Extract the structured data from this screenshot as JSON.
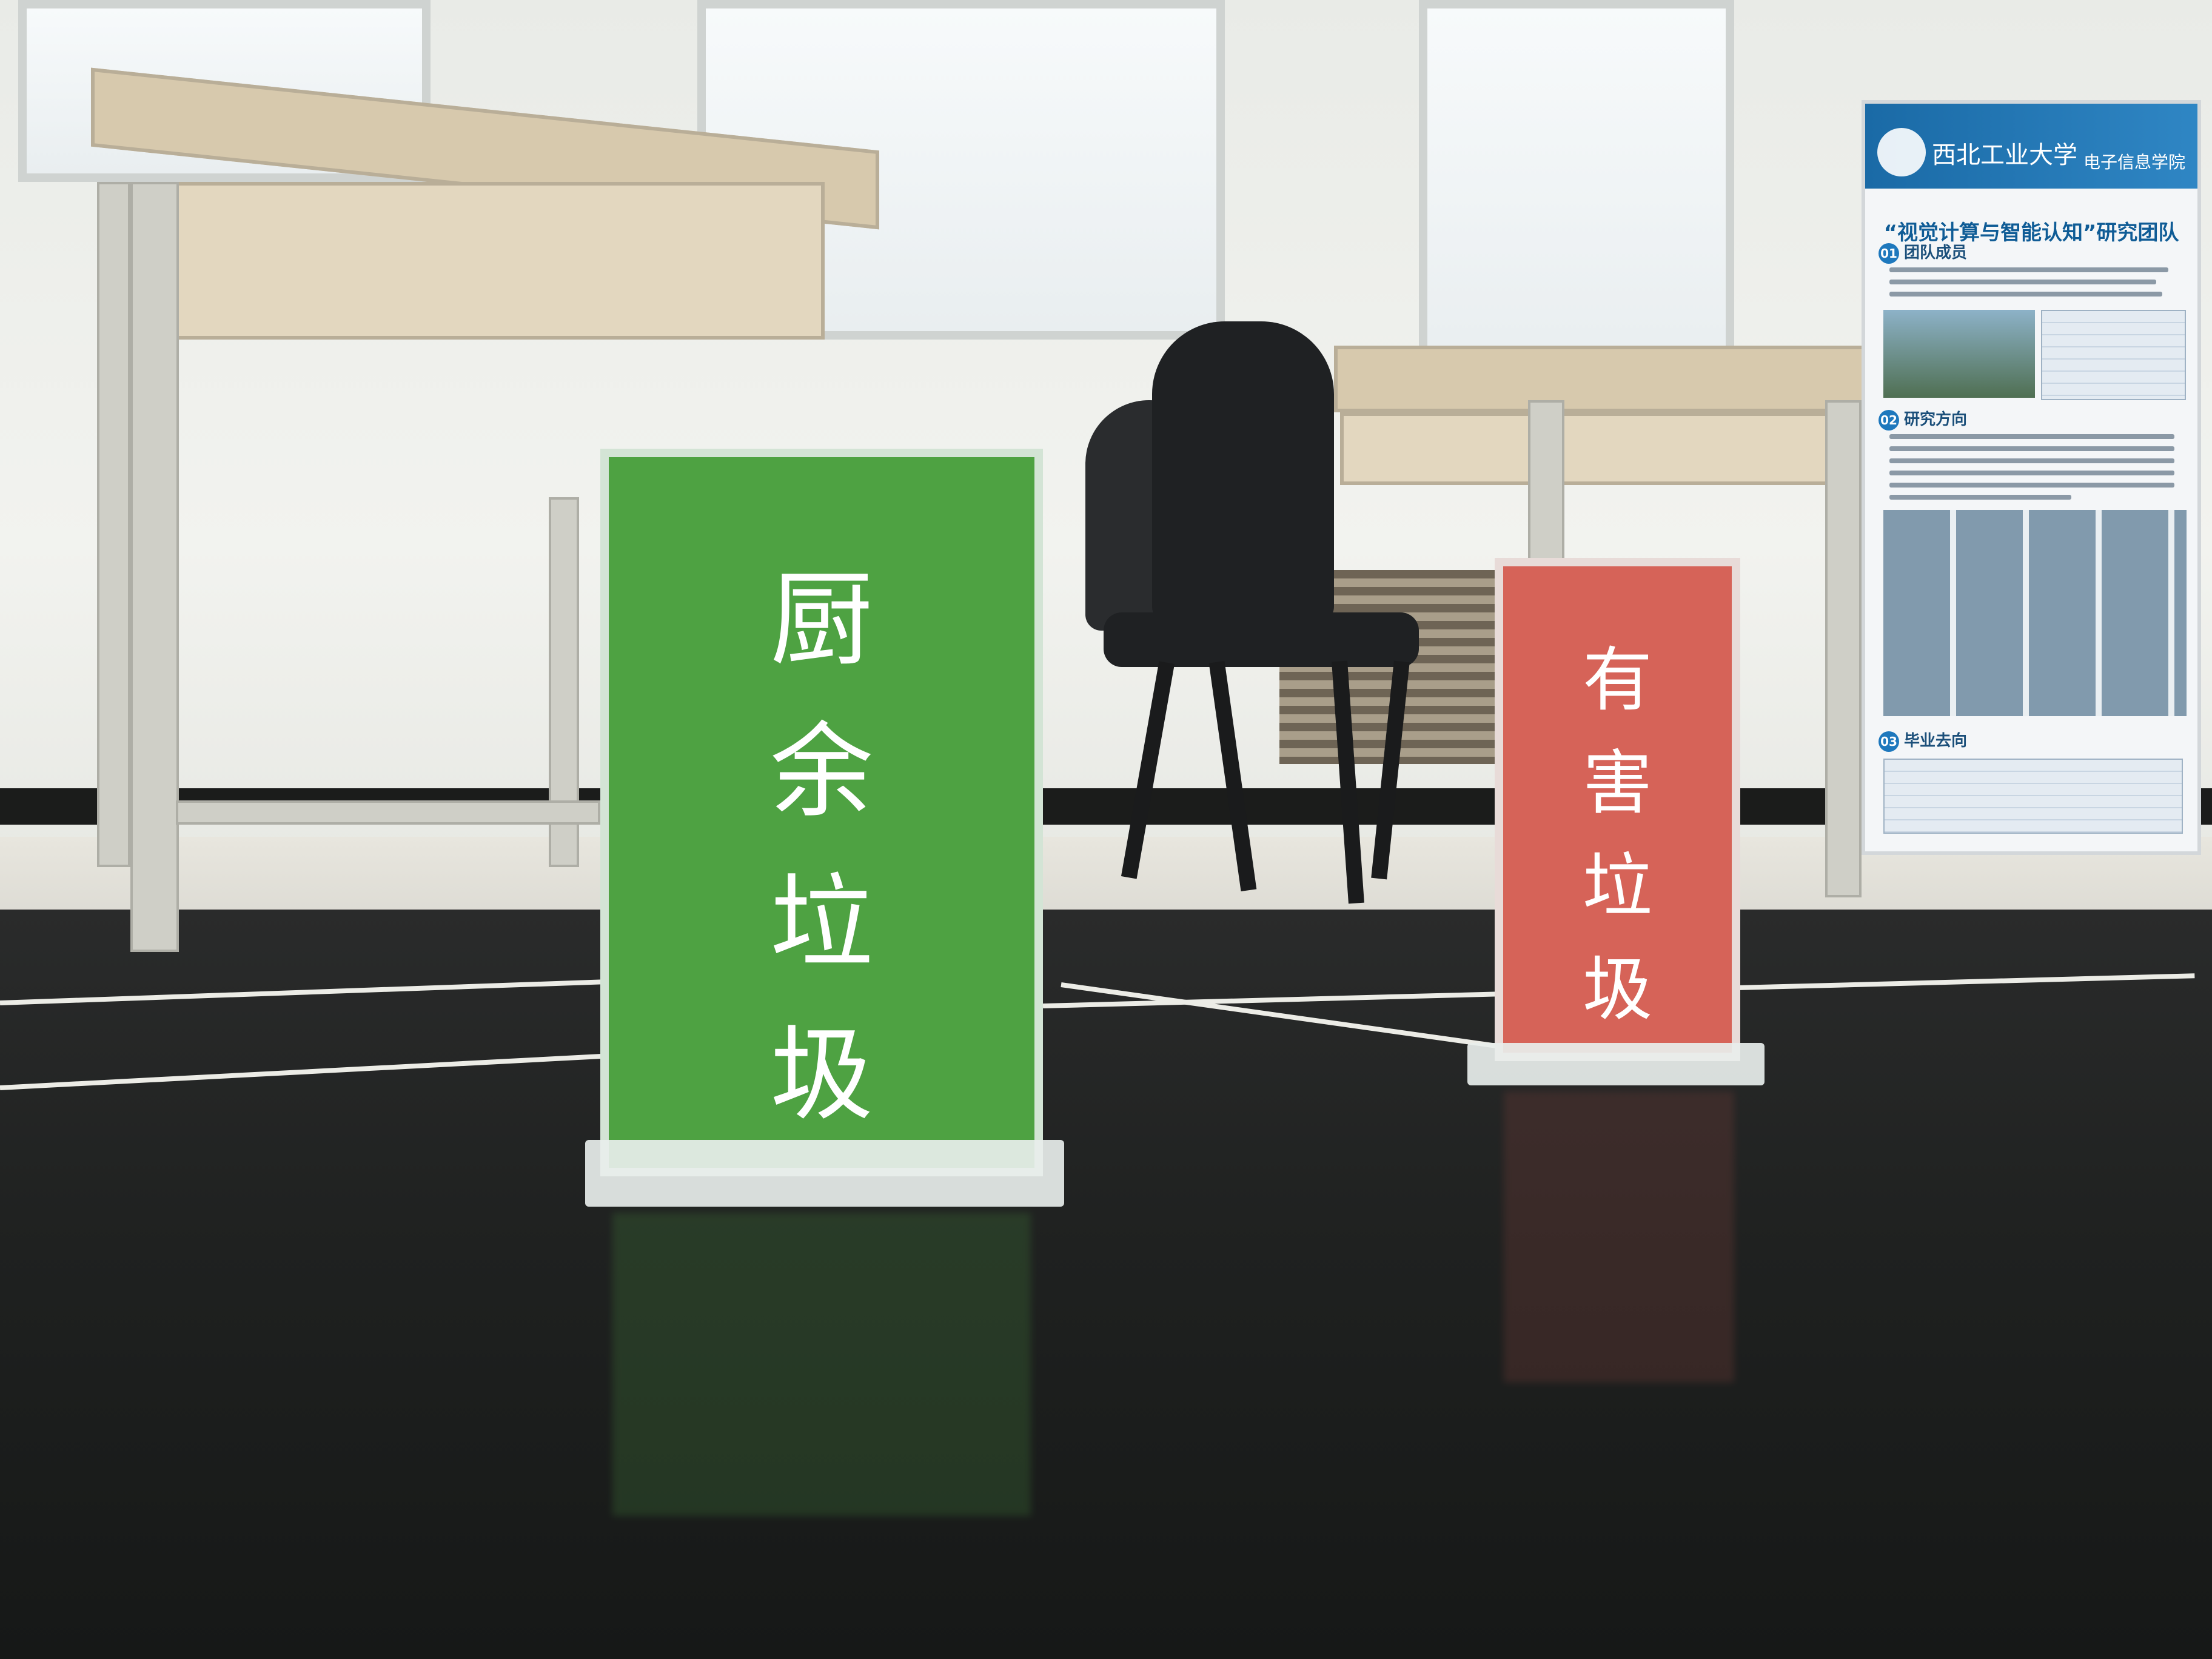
{
  "signs": {
    "kitchen_waste": {
      "chars": [
        "厨",
        "余",
        "垃",
        "圾"
      ],
      "color": "#4ea242"
    },
    "hazardous_waste": {
      "chars": [
        "有",
        "害",
        "垃",
        "圾"
      ],
      "color": "#d66358"
    }
  },
  "poster": {
    "school_name": "西北工业大学",
    "college": "电子信息学院",
    "title": "“视觉计算与智能认知”研究团队",
    "sections": [
      {
        "number": "01",
        "heading": "团队成员"
      },
      {
        "number": "02",
        "heading": "研究方向"
      },
      {
        "number": "03",
        "heading": "毕业去向"
      }
    ],
    "accent": "#1e78bd"
  }
}
